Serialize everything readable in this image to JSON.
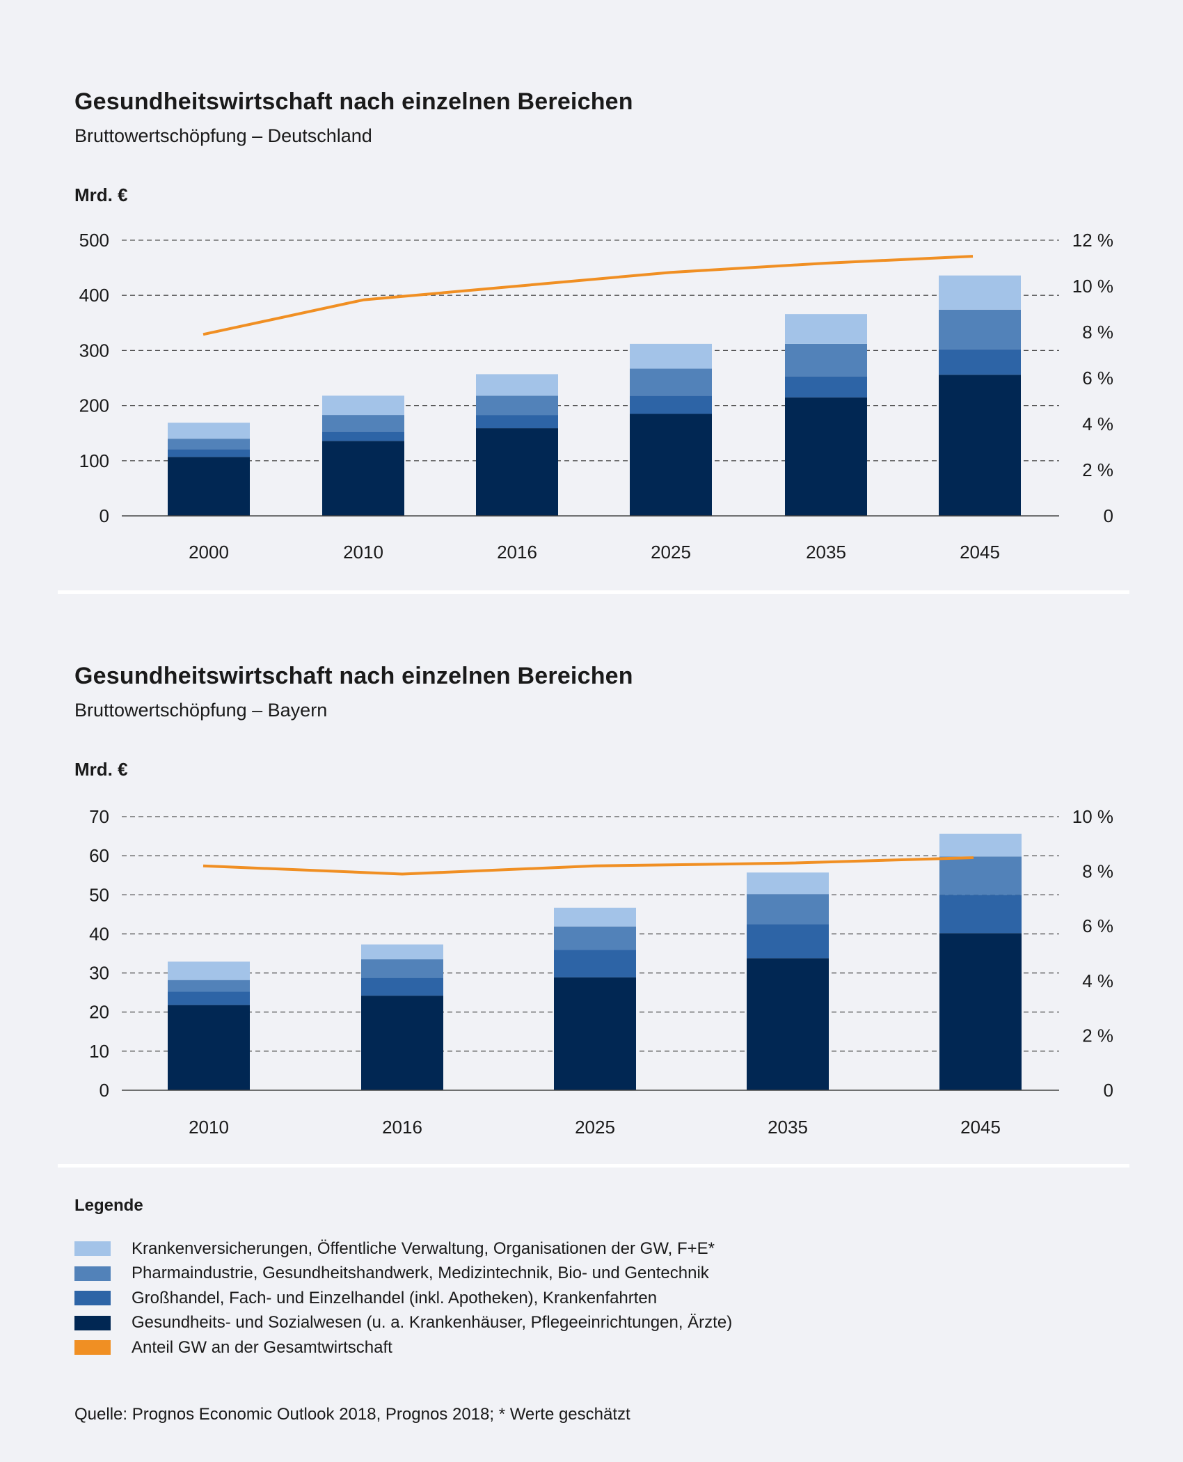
{
  "colors": {
    "krankenversicherungen": "#a3c3e8",
    "pharma": "#5282b9",
    "handel": "#2d64a6",
    "gesundheitswesen": "#012753",
    "anteil": "#f08f23",
    "grid": "#555555",
    "axis": "#444444"
  },
  "chart_data": [
    {
      "type": "bar",
      "stacked": true,
      "title": "Gesundheitswirtschaft nach einzelnen Bereichen",
      "subtitle": "Bruttowertschöpfung – Deutschland",
      "ylabel": "Mrd. €",
      "ylim": [
        0,
        500
      ],
      "yticks": [
        "0",
        "100",
        "200",
        "300",
        "400",
        "500"
      ],
      "y2lim": [
        0,
        12
      ],
      "y2ticks": [
        "0",
        "2 %",
        "4 %",
        "6 %",
        "8 %",
        "10 %",
        "12 %"
      ],
      "grid": true,
      "categories": [
        "2000",
        "2010",
        "2016",
        "2025",
        "2035",
        "2045"
      ],
      "series": [
        {
          "key": "gesundheitswesen",
          "values": [
            107,
            136,
            159,
            185,
            215,
            256
          ]
        },
        {
          "key": "handel",
          "values": [
            14,
            17,
            24,
            33,
            38,
            46
          ]
        },
        {
          "key": "pharma",
          "values": [
            19,
            30,
            35,
            49,
            59,
            72
          ]
        },
        {
          "key": "krankenversicherungen",
          "values": [
            29,
            35,
            39,
            45,
            54,
            62
          ]
        }
      ],
      "line": {
        "key": "anteil",
        "axis": "right",
        "values": [
          7.9,
          9.4,
          10.0,
          10.6,
          11.0,
          11.3
        ]
      }
    },
    {
      "type": "bar",
      "stacked": true,
      "title": "Gesundheitswirtschaft nach einzelnen Bereichen",
      "subtitle": "Bruttowertschöpfung – Bayern",
      "ylabel": "Mrd. €",
      "ylim": [
        0,
        70
      ],
      "yticks": [
        "0",
        "10",
        "20",
        "30",
        "40",
        "50",
        "60",
        "70"
      ],
      "y2lim": [
        0,
        10
      ],
      "y2ticks": [
        "0",
        "2 %",
        "4 %",
        "6 %",
        "8 %",
        "10 %"
      ],
      "grid": true,
      "categories": [
        "2010",
        "2016",
        "2025",
        "2035",
        "2045"
      ],
      "series": [
        {
          "key": "gesundheitswesen",
          "values": [
            21.8,
            24.2,
            28.9,
            33.8,
            40.2
          ]
        },
        {
          "key": "handel",
          "values": [
            3.4,
            4.6,
            7.0,
            8.7,
            9.8
          ]
        },
        {
          "key": "pharma",
          "values": [
            3.0,
            4.7,
            6.0,
            7.7,
            9.8
          ]
        },
        {
          "key": "krankenversicherungen",
          "values": [
            4.7,
            3.8,
            4.8,
            5.5,
            5.8
          ]
        }
      ],
      "line": {
        "key": "anteil",
        "axis": "right",
        "values": [
          8.2,
          7.9,
          8.2,
          8.3,
          8.5
        ]
      }
    }
  ],
  "legend": {
    "title": "Legende",
    "items": [
      {
        "key": "krankenversicherungen",
        "label": "Krankenversicherungen, Öffentliche Verwaltung, Organisationen der GW, F+E*"
      },
      {
        "key": "pharma",
        "label": "Pharmaindustrie, Gesundheitshandwerk, Medizintechnik, Bio- und Gentechnik"
      },
      {
        "key": "handel",
        "label": "Großhandel, Fach- und Einzelhandel (inkl. Apotheken), Krankenfahrten"
      },
      {
        "key": "gesundheitswesen",
        "label": "Gesundheits- und Sozialwesen (u. a. Krankenhäuser, Pflegeeinrichtungen, Ärzte)"
      },
      {
        "key": "anteil",
        "label": "Anteil GW an der Gesamtwirtschaft"
      }
    ]
  },
  "source": "Quelle: Prognos Economic Outlook 2018, Prognos 2018; * Werte geschätzt"
}
